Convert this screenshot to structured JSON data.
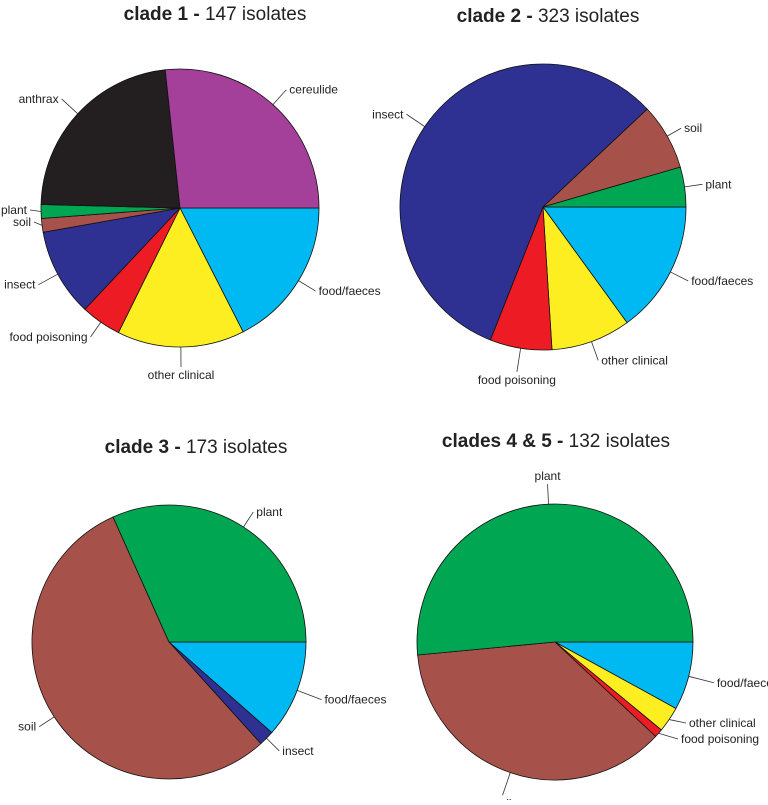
{
  "chart_data": [
    {
      "type": "pie",
      "title_bold": "clade 1 - ",
      "title_rest": "147 isolates",
      "slices": [
        {
          "label": "food/faeces",
          "value": 17.5,
          "color": "#00b9f2"
        },
        {
          "label": "other clinical",
          "value": 14.8,
          "color": "#fcee21"
        },
        {
          "label": "food poisoning",
          "value": 4.7,
          "color": "#ed1c24"
        },
        {
          "label": "insect",
          "value": 10.2,
          "color": "#2e3192"
        },
        {
          "label": "soil",
          "value": 1.6,
          "color": "#a7514b"
        },
        {
          "label": "plant",
          "value": 1.6,
          "color": "#00a651"
        },
        {
          "label": "anthrax",
          "value": 22.9,
          "color": "#231f20"
        },
        {
          "label": "cereulide",
          "value": 26.7,
          "color": "#a43f9a"
        }
      ]
    },
    {
      "type": "pie",
      "title_bold": "clade 2 - ",
      "title_rest": "323 isolates",
      "slices": [
        {
          "label": "food/faeces",
          "value": 15.0,
          "color": "#00b9f2"
        },
        {
          "label": "other clinical",
          "value": 9.0,
          "color": "#fcee21"
        },
        {
          "label": "food poisoning",
          "value": 7.0,
          "color": "#ed1c24"
        },
        {
          "label": "insect",
          "value": 57.0,
          "color": "#2e3192"
        },
        {
          "label": "soil",
          "value": 7.5,
          "color": "#a7514b"
        },
        {
          "label": "plant",
          "value": 4.5,
          "color": "#00a651"
        }
      ]
    },
    {
      "type": "pie",
      "title_bold": "clade 3 - ",
      "title_rest": "173 isolates",
      "slices": [
        {
          "label": "food/faeces",
          "value": 11.5,
          "color": "#00b9f2"
        },
        {
          "label": "insect",
          "value": 1.8,
          "color": "#2e3192"
        },
        {
          "label": "soil",
          "value": 55.0,
          "color": "#a7514b"
        },
        {
          "label": "plant",
          "value": 31.7,
          "color": "#00a651"
        }
      ]
    },
    {
      "type": "pie",
      "title_bold": "clades 4 & 5 - ",
      "title_rest": "132 isolates",
      "slices": [
        {
          "label": "food/faeces",
          "value": 8.0,
          "color": "#00b9f2"
        },
        {
          "label": "other clinical",
          "value": 3.0,
          "color": "#fcee21"
        },
        {
          "label": "food poisoning",
          "value": 1.0,
          "color": "#ed1c24"
        },
        {
          "label": "soil",
          "value": 36.5,
          "color": "#a7514b"
        },
        {
          "label": "plant",
          "value": 51.5,
          "color": "#00a651"
        }
      ]
    }
  ]
}
